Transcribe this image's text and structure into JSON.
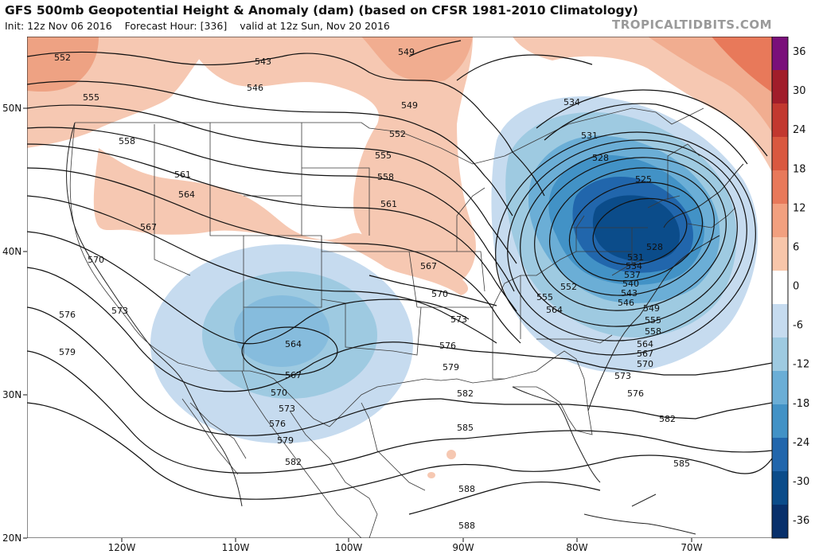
{
  "header": {
    "title": "GFS 500mb Geopotential Height & Anomaly (dam) (based on CFSR 1981-2010 Climatology)",
    "init": "Init: 12z Nov 06 2016",
    "forecast_hour": "Forecast Hour: [336]",
    "valid": "valid at 12z Sun, Nov 20 2016",
    "credit": "TROPICALTIDBITS.COM"
  },
  "axes": {
    "lat_labels": [
      "50N",
      "40N",
      "30N",
      "20N"
    ],
    "lon_labels": [
      "120W",
      "110W",
      "100W",
      "90W",
      "80W",
      "70W"
    ]
  },
  "colorbar": {
    "labels": [
      "36",
      "30",
      "24",
      "18",
      "12",
      "6",
      "0",
      "-6",
      "-12",
      "-18",
      "-24",
      "-30",
      "-36"
    ],
    "colors": [
      "#7a0f7a",
      "#a11d2a",
      "#c2382f",
      "#d9583f",
      "#e8795a",
      "#f2a07f",
      "#f8c6aa",
      "#ffffff",
      "#c6dbef",
      "#9ecae1",
      "#6baed6",
      "#4292c6",
      "#2166ac",
      "#0b4c8a",
      "#08306b"
    ]
  },
  "contour_labels": {
    "west": [
      "552",
      "555",
      "558",
      "561",
      "564",
      "567",
      "570",
      "573",
      "576",
      "579"
    ],
    "north": [
      "543",
      "546",
      "549",
      "552",
      "555",
      "558",
      "561",
      "567",
      "570"
    ],
    "southwest_low": [
      "564",
      "567",
      "570",
      "573",
      "576",
      "579",
      "582"
    ],
    "south": [
      "573",
      "576",
      "579",
      "582",
      "585",
      "588"
    ],
    "east_low": [
      "534",
      "531",
      "528",
      "525",
      "528",
      "531",
      "534",
      "537",
      "540",
      "543",
      "546",
      "549",
      "552",
      "555",
      "558",
      "561",
      "564",
      "567",
      "570",
      "573",
      "576",
      "579",
      "582",
      "585"
    ]
  },
  "colors": {
    "warm_anomaly": "#f3b79c",
    "cold_anomaly": "#2166ac",
    "contour": "#111111",
    "border": "#444444"
  }
}
